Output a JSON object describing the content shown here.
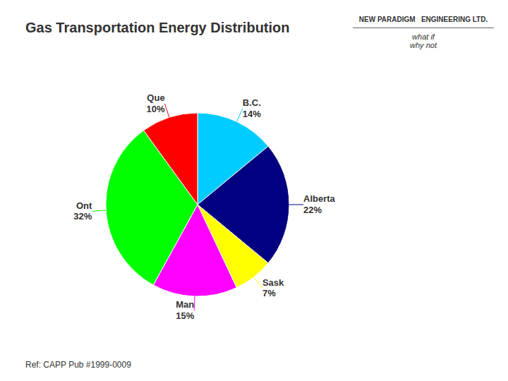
{
  "chart_data": {
    "type": "pie",
    "title": "Gas Transportation Energy Distribution",
    "categories": [
      "B.C.",
      "Alberta",
      "Sask",
      "Man",
      "Ont",
      "Que"
    ],
    "values": [
      14,
      22,
      7,
      15,
      32,
      10
    ],
    "value_labels": [
      "14%",
      "22%",
      "7%",
      "15%",
      "32%",
      "10%"
    ],
    "colors": [
      "#00ccff",
      "#000080",
      "#ffff00",
      "#ff00ff",
      "#00ff00",
      "#ff0000"
    ],
    "data_labels": true,
    "annotations": [
      "Ref: CAPP Pub #1999-0009",
      "NEW PARADIGM   ENGINEERING LTD.",
      "what if\nwhy not"
    ]
  }
}
